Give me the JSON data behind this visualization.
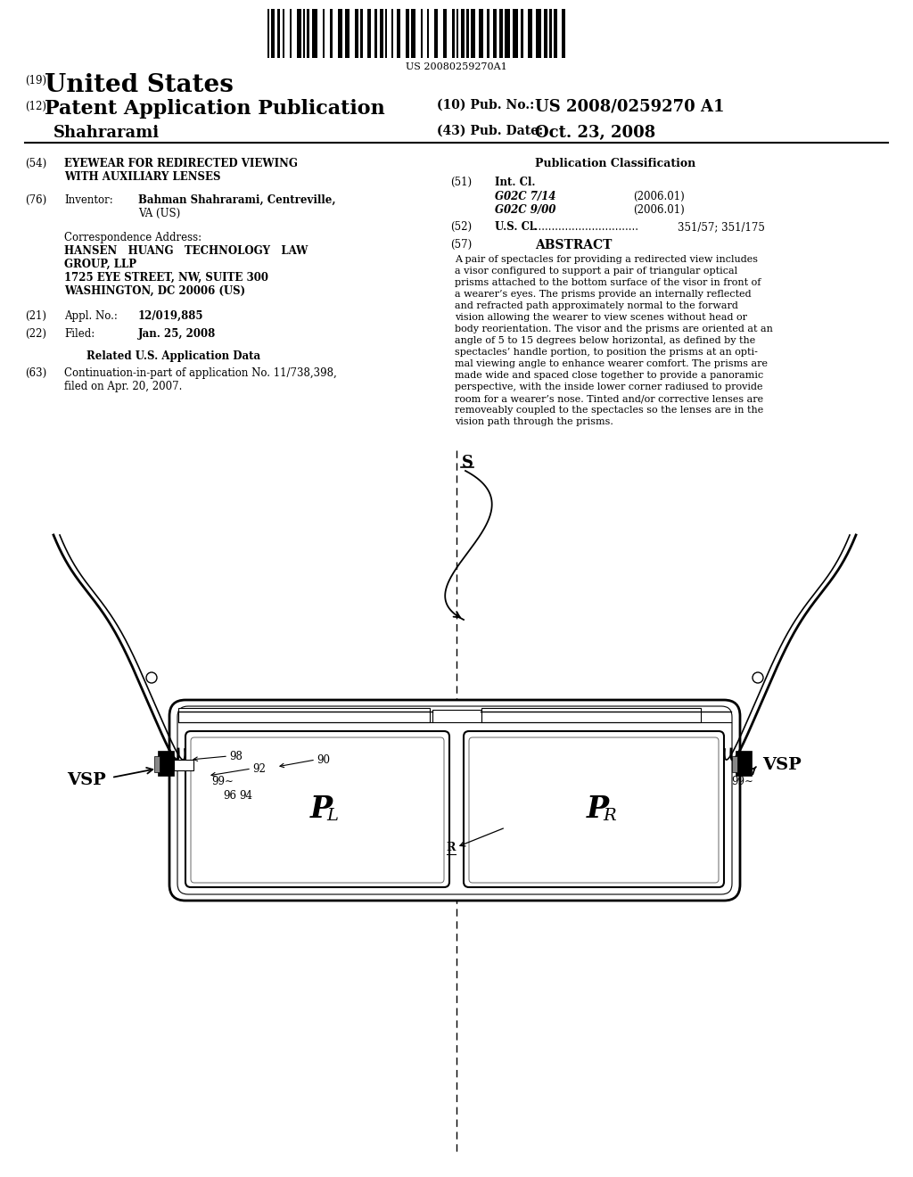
{
  "background_color": "#ffffff",
  "barcode_text": "US 20080259270A1",
  "pub_no_label": "(10) Pub. No.:",
  "pub_no_value": "US 2008/0259270 A1",
  "pub_date_label": "(43) Pub. Date:",
  "pub_date_value": "Oct. 23, 2008",
  "inventor_last": "Shahrarami",
  "field54_label": "(54)",
  "field54_title1": "EYEWEAR FOR REDIRECTED VIEWING",
  "field54_title2": "WITH AUXILIARY LENSES",
  "field76_label": "(76)",
  "field76_key": "Inventor:",
  "field76_val1": "Bahman Shahrarami, Centreville,",
  "field76_val2": "VA (US)",
  "corr_title": "Correspondence Address:",
  "corr_line1": "HANSEN   HUANG   TECHNOLOGY   LAW",
  "corr_line2": "GROUP, LLP",
  "corr_line3": "1725 EYE STREET, NW, SUITE 300",
  "corr_line4": "WASHINGTON, DC 20006 (US)",
  "field21_label": "(21)",
  "field21_key": "Appl. No.:",
  "field21_val": "12/019,885",
  "field22_label": "(22)",
  "field22_key": "Filed:",
  "field22_val": "Jan. 25, 2008",
  "related_title": "Related U.S. Application Data",
  "field63_label": "(63)",
  "field63_val1": "Continuation-in-part of application No. 11/738,398,",
  "field63_val2": "filed on Apr. 20, 2007.",
  "pub_class_title": "Publication Classification",
  "field51_label": "(51)",
  "field51_key": "Int. Cl.",
  "field51_g02c714": "G02C 7/14",
  "field51_g02c714_date": "(2006.01)",
  "field51_g02c900": "G02C 9/00",
  "field51_g02c900_date": "(2006.01)",
  "field52_label": "(52)",
  "field52_key": "U.S. Cl.",
  "field52_dots": "................................",
  "field52_val": "351/57; 351/175",
  "field57_label": "(57)",
  "field57_key": "ABSTRACT",
  "abstract_lines": [
    "A pair of spectacles for providing a redirected view includes",
    "a visor configured to support a pair of triangular optical",
    "prisms attached to the bottom surface of the visor in front of",
    "a wearer’s eyes. The prisms provide an internally reflected",
    "and refracted path approximately normal to the forward",
    "vision allowing the wearer to view scenes without head or",
    "body reorientation. The visor and the prisms are oriented at an",
    "angle of 5 to 15 degrees below horizontal, as defined by the",
    "spectacles’ handle portion, to position the prisms at an opti-",
    "mal viewing angle to enhance wearer comfort. The prisms are",
    "made wide and spaced close together to provide a panoramic",
    "perspective, with the inside lower corner radiused to provide",
    "room for a wearer’s nose. Tinted and/or corrective lenses are",
    "removeably coupled to the spectacles so the lenses are in the",
    "vision path through the prisms."
  ],
  "diagram_label_S": "S",
  "diagram_label_VSP_left": "VSP",
  "diagram_label_VSP_right": "VSP",
  "diagram_label_PL": "P",
  "diagram_sub_L": "L",
  "diagram_label_PR": "P",
  "diagram_sub_R": "R",
  "diagram_label_R": "R",
  "diagram_label_90": "90",
  "diagram_label_92": "92",
  "diagram_label_94": "94",
  "diagram_label_96": "96",
  "diagram_label_98": "98",
  "diagram_label_99": "99"
}
